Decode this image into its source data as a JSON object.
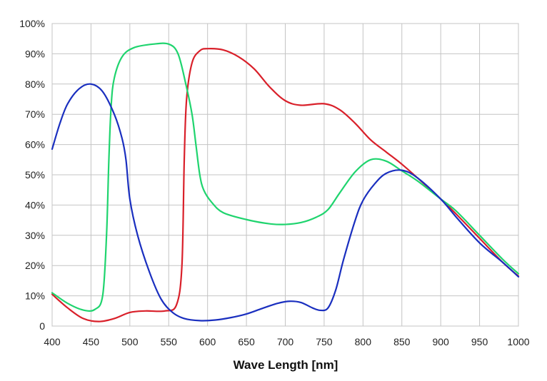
{
  "chart_data": {
    "type": "line",
    "title": "",
    "xlabel": "Wave Length [nm]",
    "ylabel": "",
    "xlim": [
      400,
      1000
    ],
    "ylim": [
      0,
      100
    ],
    "x_ticks": [
      400,
      450,
      500,
      550,
      600,
      650,
      700,
      750,
      800,
      850,
      900,
      950,
      1000
    ],
    "y_ticks": [
      0,
      10,
      20,
      30,
      40,
      50,
      60,
      70,
      80,
      90,
      100
    ],
    "y_tick_labels": [
      "0",
      "10%",
      "20%",
      "30%",
      "40%",
      "50%",
      "60%",
      "70%",
      "80%",
      "90%",
      "100%"
    ],
    "grid": true,
    "legend": "none",
    "series": [
      {
        "color": "#d9202a",
        "points": [
          [
            400,
            10.5
          ],
          [
            420,
            6
          ],
          [
            440,
            2.5
          ],
          [
            460,
            1.5
          ],
          [
            480,
            2.5
          ],
          [
            500,
            4.5
          ],
          [
            520,
            5
          ],
          [
            545,
            5
          ],
          [
            560,
            7
          ],
          [
            567,
            20
          ],
          [
            570,
            55
          ],
          [
            573,
            75
          ],
          [
            580,
            87
          ],
          [
            590,
            91
          ],
          [
            600,
            91.7
          ],
          [
            620,
            91.3
          ],
          [
            640,
            89
          ],
          [
            660,
            85
          ],
          [
            680,
            79
          ],
          [
            700,
            74.5
          ],
          [
            720,
            73
          ],
          [
            750,
            73.5
          ],
          [
            770,
            71.5
          ],
          [
            790,
            67
          ],
          [
            810,
            61.5
          ],
          [
            830,
            57.5
          ],
          [
            850,
            53.5
          ],
          [
            870,
            49
          ],
          [
            900,
            42
          ],
          [
            920,
            37
          ],
          [
            950,
            29
          ],
          [
            980,
            21
          ],
          [
            1000,
            16.5
          ]
        ]
      },
      {
        "color": "#1fd46e",
        "points": [
          [
            400,
            11
          ],
          [
            420,
            7.5
          ],
          [
            440,
            5.3
          ],
          [
            455,
            5.5
          ],
          [
            465,
            10
          ],
          [
            470,
            30
          ],
          [
            473,
            55
          ],
          [
            476,
            73
          ],
          [
            480,
            82
          ],
          [
            490,
            89
          ],
          [
            505,
            92
          ],
          [
            530,
            93.2
          ],
          [
            550,
            93.2
          ],
          [
            562,
            90
          ],
          [
            572,
            80
          ],
          [
            580,
            70
          ],
          [
            585,
            60
          ],
          [
            590,
            50
          ],
          [
            595,
            45
          ],
          [
            605,
            41
          ],
          [
            620,
            37.5
          ],
          [
            650,
            35.2
          ],
          [
            680,
            33.8
          ],
          [
            700,
            33.6
          ],
          [
            720,
            34.2
          ],
          [
            740,
            36
          ],
          [
            755,
            38.5
          ],
          [
            770,
            44
          ],
          [
            790,
            51
          ],
          [
            810,
            55
          ],
          [
            830,
            54.5
          ],
          [
            850,
            51.3
          ],
          [
            870,
            48
          ],
          [
            900,
            42
          ],
          [
            920,
            38
          ],
          [
            950,
            30
          ],
          [
            980,
            22
          ],
          [
            1000,
            17.3
          ]
        ]
      },
      {
        "color": "#1a2fbf",
        "points": [
          [
            400,
            58.5
          ],
          [
            410,
            67
          ],
          [
            420,
            73.5
          ],
          [
            435,
            78.5
          ],
          [
            450,
            80
          ],
          [
            465,
            77.5
          ],
          [
            480,
            70
          ],
          [
            490,
            62
          ],
          [
            495,
            55
          ],
          [
            500,
            42
          ],
          [
            510,
            30
          ],
          [
            525,
            18
          ],
          [
            540,
            9
          ],
          [
            555,
            4.5
          ],
          [
            570,
            2.5
          ],
          [
            590,
            1.8
          ],
          [
            610,
            2
          ],
          [
            630,
            2.8
          ],
          [
            650,
            4
          ],
          [
            670,
            5.8
          ],
          [
            690,
            7.5
          ],
          [
            705,
            8.2
          ],
          [
            720,
            7.8
          ],
          [
            735,
            6
          ],
          [
            745,
            5.2
          ],
          [
            755,
            6
          ],
          [
            765,
            12
          ],
          [
            775,
            22
          ],
          [
            790,
            35
          ],
          [
            800,
            41.5
          ],
          [
            815,
            47
          ],
          [
            830,
            50.5
          ],
          [
            850,
            51.5
          ],
          [
            870,
            49
          ],
          [
            900,
            42
          ],
          [
            920,
            36
          ],
          [
            950,
            27.5
          ],
          [
            980,
            21
          ],
          [
            1000,
            16.3
          ]
        ]
      }
    ]
  }
}
